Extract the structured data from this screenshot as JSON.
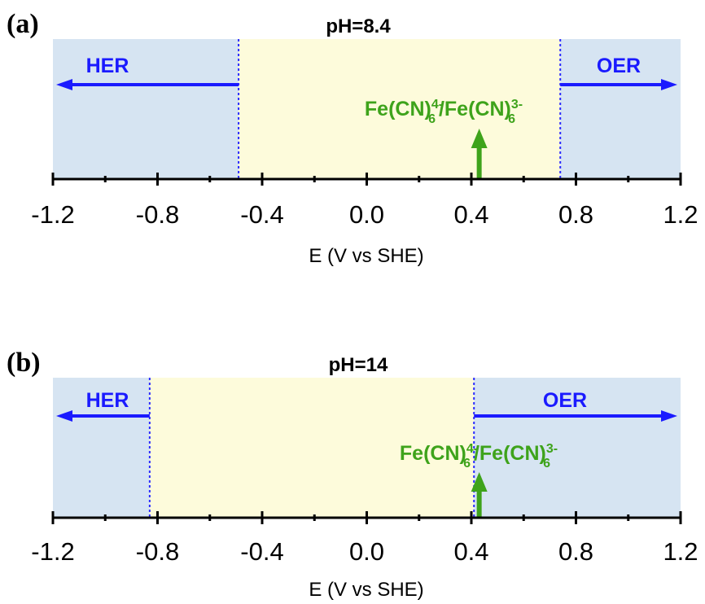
{
  "colors": {
    "outside_window": "#d6e4f2",
    "stable_window": "#fdfbdb",
    "boundary_line": "#2b2bff",
    "arrow_blue": "#1a1aff",
    "couple_green": "#3ea31b",
    "axis": "#000000"
  },
  "chart_data": [
    {
      "type": "number-line",
      "panel_label": "(a)",
      "title": "pH=8.4",
      "xlabel": "E (V vs SHE)",
      "xlim": [
        -1.2,
        1.2
      ],
      "major_ticks": [
        -1.2,
        -0.8,
        -0.4,
        0.0,
        0.4,
        0.8,
        1.2
      ],
      "tick_labels": [
        "-1.2",
        "-0.8",
        "-0.4",
        "0.0",
        "0.4",
        "0.8",
        "1.2"
      ],
      "her_potential": -0.49,
      "oer_potential": 0.74,
      "couple_potential": 0.43,
      "her_label": "HER",
      "oer_label": "OER",
      "couple_label": {
        "part1": "Fe(CN)",
        "sub1": "6",
        "sup1": "4-",
        "slash": "/Fe(CN)",
        "sub2": "6",
        "sup2": "3-"
      }
    },
    {
      "type": "number-line",
      "panel_label": "(b)",
      "title": "pH=14",
      "xlabel": "E (V vs SHE)",
      "xlim": [
        -1.2,
        1.2
      ],
      "major_ticks": [
        -1.2,
        -0.8,
        -0.4,
        0.0,
        0.4,
        0.8,
        1.2
      ],
      "tick_labels": [
        "-1.2",
        "-0.8",
        "-0.4",
        "0.0",
        "0.4",
        "0.8",
        "1.2"
      ],
      "her_potential": -0.83,
      "oer_potential": 0.41,
      "couple_potential": 0.43,
      "her_label": "HER",
      "oer_label": "OER",
      "couple_label": {
        "part1": "Fe(CN)",
        "sub1": "6",
        "sup1": "4-",
        "slash": "/Fe(CN)",
        "sub2": "6",
        "sup2": "3-"
      }
    }
  ]
}
